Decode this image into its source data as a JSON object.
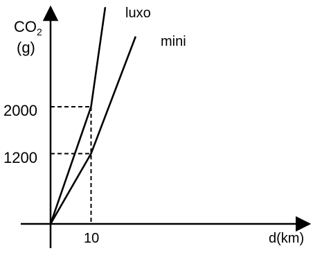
{
  "chart_data": {
    "type": "line",
    "xlabel": "d(km)",
    "ylabel": "CO",
    "ylabel_subscript": "2",
    "ylabel_unit": "(g)",
    "x_ticks": [
      10
    ],
    "y_ticks": [
      1200,
      2000
    ],
    "xlim": [
      0,
      23.5
    ],
    "ylim": [
      0,
      3800
    ],
    "series": [
      {
        "name": "luxo",
        "x": [
          0,
          10,
          13.5
        ],
        "y": [
          0,
          2000,
          3700
        ]
      },
      {
        "name": "mini",
        "x": [
          0,
          10,
          21
        ],
        "y": [
          0,
          1200,
          3200
        ]
      }
    ],
    "guides": [
      {
        "x": 10,
        "y": 2000
      },
      {
        "x": 10,
        "y": 1200
      }
    ],
    "grid": false,
    "legend": "none",
    "colors": {
      "line": "#000000",
      "background": "#ffffff"
    }
  }
}
